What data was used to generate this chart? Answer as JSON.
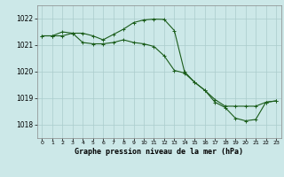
{
  "title": "Graphe pression niveau de la mer (hPa)",
  "background_color": "#cce8e8",
  "line_color": "#1a5c1a",
  "grid_color": "#aacccc",
  "x_ticks": [
    0,
    1,
    2,
    3,
    4,
    5,
    6,
    7,
    8,
    9,
    10,
    11,
    12,
    13,
    14,
    15,
    16,
    17,
    18,
    19,
    20,
    21,
    22,
    23
  ],
  "y_ticks": [
    1018,
    1019,
    1020,
    1021,
    1022
  ],
  "ylim": [
    1017.5,
    1022.5
  ],
  "xlim": [
    -0.5,
    23.5
  ],
  "series1_x": [
    0,
    1,
    2,
    3,
    4,
    5,
    6,
    7,
    8,
    9,
    10,
    11,
    12,
    13,
    14,
    15,
    16,
    17,
    18,
    19,
    20,
    21,
    22,
    23
  ],
  "series1_y": [
    1021.35,
    1021.35,
    1021.5,
    1021.45,
    1021.45,
    1021.35,
    1021.2,
    1021.4,
    1021.6,
    1021.85,
    1021.95,
    1021.98,
    1021.97,
    1021.55,
    1020.0,
    1019.6,
    1019.3,
    1018.85,
    1018.65,
    1018.25,
    1018.15,
    1018.2,
    1018.85,
    1018.9
  ],
  "series2_x": [
    0,
    1,
    2,
    3,
    4,
    5,
    6,
    7,
    8,
    9,
    10,
    11,
    12,
    13,
    14,
    15,
    16,
    17,
    18,
    19,
    20,
    21,
    22,
    23
  ],
  "series2_y": [
    1021.35,
    1021.35,
    1021.35,
    1021.45,
    1021.1,
    1021.05,
    1021.05,
    1021.1,
    1021.2,
    1021.1,
    1021.05,
    1020.95,
    1020.6,
    1020.05,
    1019.95,
    1019.6,
    1019.3,
    1018.95,
    1018.7,
    1018.7,
    1018.7,
    1018.7,
    1018.85,
    1018.9
  ]
}
